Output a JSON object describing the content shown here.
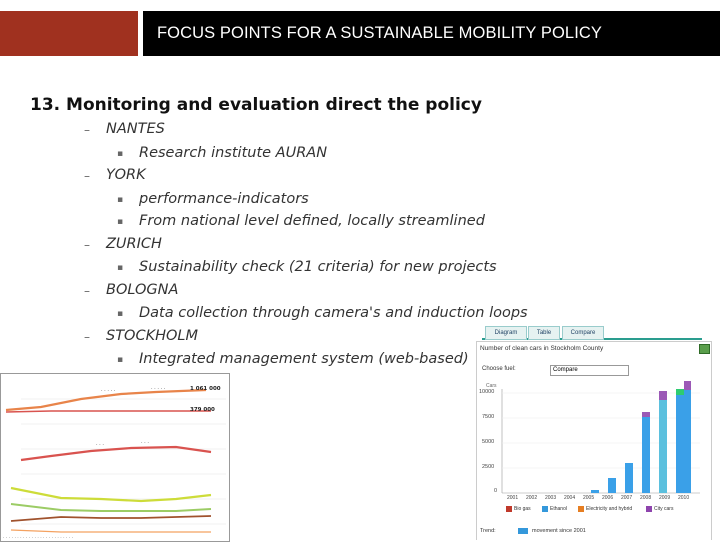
{
  "slide": {
    "header_title": "FOCUS POINTS FOR A SUSTAINABLE MOBILITY POLICY",
    "heading": "13. Monitoring and evaluation direct the policy",
    "outline": [
      {
        "city": "NANTES",
        "items": [
          "Research institute AURAN"
        ]
      },
      {
        "city": "YORK",
        "items": [
          "performance-indicators",
          "From national level defined, locally streamlined"
        ]
      },
      {
        "city": "ZURICH",
        "items": [
          "Sustainability check  (21 criteria) for new projects"
        ]
      },
      {
        "city": "BOLOGNA",
        "items": [
          "Data  collection through camera's and  induction loops"
        ]
      },
      {
        "city": "STOCKHOLM",
        "items": [
          "Integrated  management system (web-based)"
        ]
      }
    ]
  },
  "left_chart": {
    "row_labels": [
      "1 061 000",
      "379 000"
    ],
    "line_colors": [
      "#e8844a",
      "#d9534f",
      "#5b9bd5",
      "#cddc39",
      "#9ccc65",
      "#a0522d"
    ]
  },
  "right_chart": {
    "tabs": [
      "Diagram",
      "Table",
      "Compare"
    ],
    "title": "Number of clean cars in Stockholm County",
    "choose_label": "Choose fuel:",
    "select_value": "Compare",
    "y_ticks": [
      "10000",
      "7500",
      "5000",
      "2500",
      "0"
    ],
    "y_unit": "Cars",
    "years": [
      "2001",
      "2002",
      "2003",
      "2004",
      "2005",
      "2006",
      "2007",
      "2008",
      "2009",
      "2010"
    ],
    "legend": [
      {
        "label": "Bio gas",
        "color": "#c0392b"
      },
      {
        "label": "Ethanol",
        "color": "#3498db"
      },
      {
        "label": "Electricity and hybrid",
        "color": "#e67e22"
      },
      {
        "label": "City cars",
        "color": "#8e44ad"
      }
    ],
    "trend_label": "Trend:",
    "trend_text": "movement since 2001",
    "colors": {
      "accent_teal": "#2a9d8f",
      "bar_blue": "#3aa0e8",
      "bar_cyan": "#5bc0de",
      "bar_purple": "#9b59b6",
      "bar_green": "#2ecc71"
    }
  }
}
